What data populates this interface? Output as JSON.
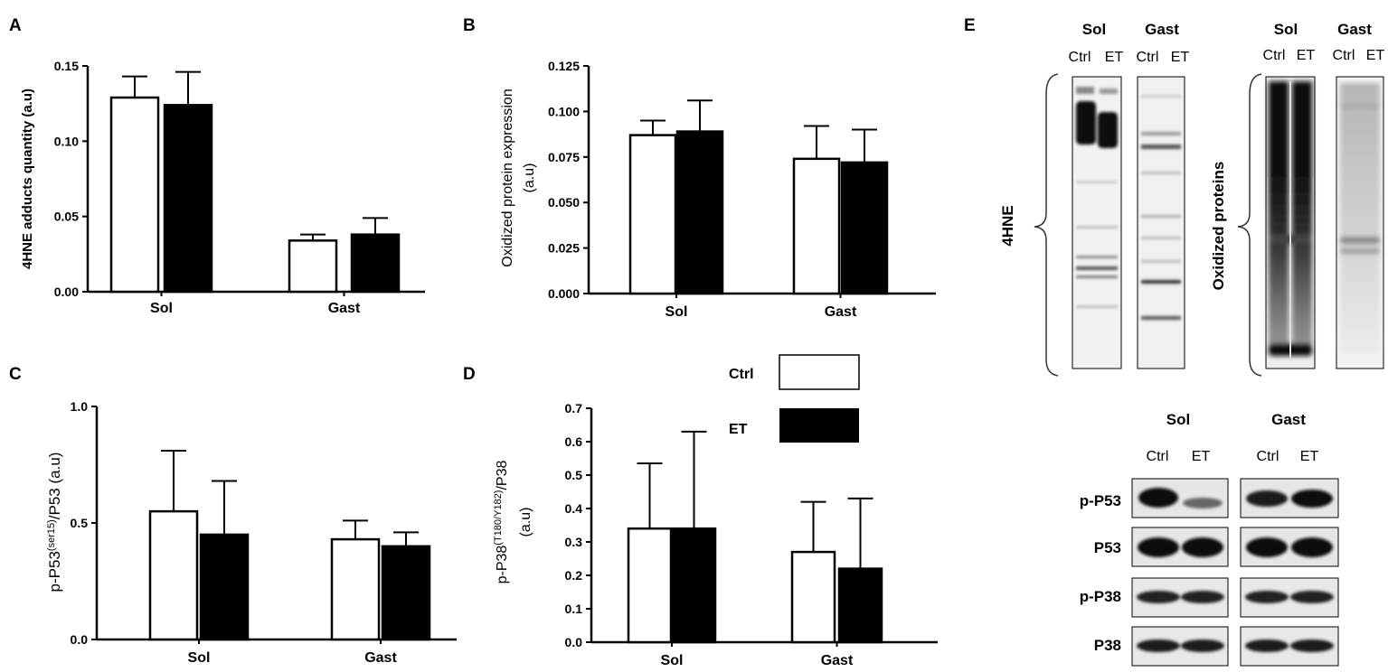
{
  "legend": {
    "ctrl": "Ctrl",
    "et": "ET"
  },
  "chart_data": [
    {
      "panel": "A",
      "type": "bar",
      "categories": [
        "Sol",
        "Gast"
      ],
      "series": [
        {
          "name": "Ctrl",
          "fill": "#ffffff",
          "values": [
            0.129,
            0.034
          ],
          "err": [
            0.014,
            0.004
          ]
        },
        {
          "name": "ET",
          "fill": "#000000",
          "values": [
            0.124,
            0.038
          ],
          "err": [
            0.022,
            0.011
          ]
        }
      ],
      "ylabel": "4HNE adducts quantity (a.u)",
      "ylim": [
        0,
        0.15
      ],
      "yticks": [
        "0.00",
        "0.05",
        "0.10",
        "0.15"
      ]
    },
    {
      "panel": "B",
      "type": "bar",
      "categories": [
        "Sol",
        "Gast"
      ],
      "series": [
        {
          "name": "Ctrl",
          "fill": "#ffffff",
          "values": [
            0.087,
            0.074
          ],
          "err": [
            0.008,
            0.018
          ]
        },
        {
          "name": "ET",
          "fill": "#000000",
          "values": [
            0.089,
            0.072
          ],
          "err": [
            0.017,
            0.018
          ]
        }
      ],
      "ylabel": "Oxidized protein expression",
      "ylabel2": "(a.u)",
      "ylim": [
        0,
        0.125
      ],
      "yticks": [
        "0.000",
        "0.025",
        "0.050",
        "0.075",
        "0.100",
        "0.125"
      ]
    },
    {
      "panel": "C",
      "type": "bar",
      "categories": [
        "Sol",
        "Gast"
      ],
      "series": [
        {
          "name": "Ctrl",
          "fill": "#ffffff",
          "values": [
            0.55,
            0.43
          ],
          "err": [
            0.26,
            0.08
          ]
        },
        {
          "name": "ET",
          "fill": "#000000",
          "values": [
            0.45,
            0.4
          ],
          "err": [
            0.23,
            0.06
          ]
        }
      ],
      "ylabel_main": "p-P53",
      "ylabel_sup": "(ser15)",
      "ylabel_rest": "/P53 (a.u)",
      "ylim": [
        0,
        1.0
      ],
      "yticks": [
        "0.0",
        "0.5",
        "1.0"
      ]
    },
    {
      "panel": "D",
      "type": "bar",
      "categories": [
        "Sol",
        "Gast"
      ],
      "series": [
        {
          "name": "Ctrl",
          "fill": "#ffffff",
          "values": [
            0.34,
            0.27
          ],
          "err": [
            0.195,
            0.15
          ]
        },
        {
          "name": "ET",
          "fill": "#000000",
          "values": [
            0.34,
            0.22
          ],
          "err": [
            0.29,
            0.21
          ]
        }
      ],
      "ylabel_main": "p-P38",
      "ylabel_sup": "(T180/Y182)",
      "ylabel_rest": "/P38",
      "ylabel2": "(a.u)",
      "ylim": [
        0,
        0.7
      ],
      "yticks": [
        "0.0",
        "0.1",
        "0.2",
        "0.3",
        "0.4",
        "0.5",
        "0.6",
        "0.7"
      ]
    }
  ],
  "blots": {
    "panel": "E",
    "top": {
      "lane_headers": {
        "sol": "Sol",
        "gast": "Gast",
        "ctrl": "Ctrl",
        "et": "ET"
      },
      "left_label": "4HNE",
      "right_label": "Oxidized proteins"
    },
    "bottom": {
      "group_headers": [
        "Sol",
        "Gast"
      ],
      "lane_labels": [
        "Ctrl",
        "ET",
        "Ctrl",
        "ET"
      ],
      "rows": [
        "p-P53",
        "P53",
        "p-P38",
        "P38"
      ]
    }
  }
}
